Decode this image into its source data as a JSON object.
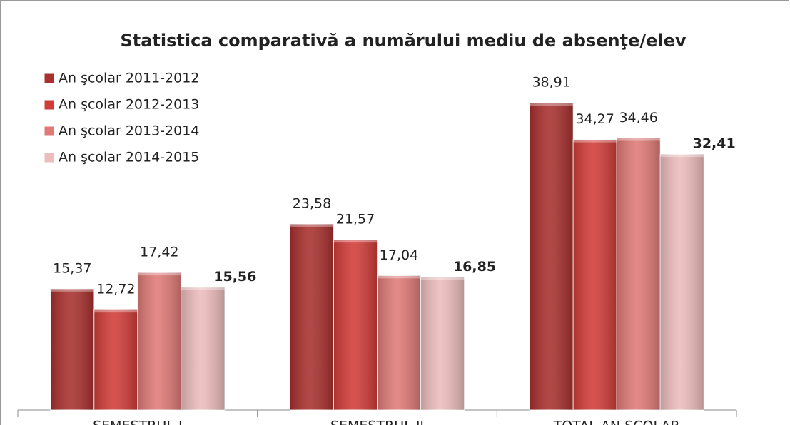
{
  "chart_data": {
    "type": "bar",
    "title": "Statistica comparativă a  numărului mediu de absenţe/elev",
    "categories": [
      "SEMESTRUL I",
      "SEMESTRUL II",
      "TOTAL AN ŞCOLAR"
    ],
    "series": [
      {
        "name": "An şcolar 2011-2012",
        "color": "#a8302e",
        "values": [
          15.37,
          23.58,
          38.91
        ],
        "value_labels": [
          "15,37",
          "23,58",
          "38,91"
        ]
      },
      {
        "name": "An şcolar 2012-2013",
        "color": "#d13c38",
        "values": [
          12.72,
          21.57,
          34.27
        ],
        "value_labels": [
          "12,72",
          "21,57",
          "34,27"
        ]
      },
      {
        "name": "An şcolar 2013-2014",
        "color": "#df7a77",
        "values": [
          17.42,
          17.04,
          34.46
        ],
        "value_labels": [
          "17,42",
          "17,04",
          "34,46"
        ]
      },
      {
        "name": "An şcolar 2014-2015",
        "color": "#edbcbc",
        "values": [
          15.56,
          16.85,
          32.41
        ],
        "value_labels": [
          "15,56",
          "16,85",
          "32,41"
        ],
        "label_bold": true
      }
    ],
    "ylim": [
      0,
      42
    ],
    "legend": "top-left"
  }
}
